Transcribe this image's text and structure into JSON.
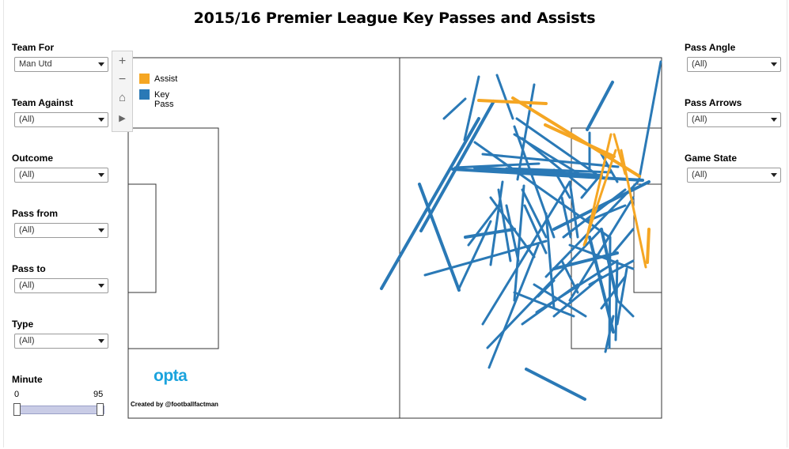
{
  "title": "2015/16 Premier League Key Passes and Assists",
  "left_filters": [
    {
      "label": "Team For",
      "value": "Man Utd"
    },
    {
      "label": "Team Against",
      "value": "(All)"
    },
    {
      "label": "Outcome",
      "value": "(All)"
    },
    {
      "label": "Pass from",
      "value": "(All)"
    },
    {
      "label": "Pass to",
      "value": "(All)"
    },
    {
      "label": "Type",
      "value": "(All)"
    }
  ],
  "right_filters": [
    {
      "label": "Pass Angle",
      "value": "(All)"
    },
    {
      "label": "Pass Arrows",
      "value": "(All)"
    },
    {
      "label": "Game State",
      "value": "(All)"
    }
  ],
  "minute": {
    "label": "Minute",
    "min": "0",
    "max": "95"
  },
  "toolbar": {
    "zoom_in": "+",
    "zoom_out": "−",
    "home": "⌂",
    "play": "▶"
  },
  "legend": [
    {
      "label": "Assist",
      "color": "#f5a623"
    },
    {
      "label": "Key Pass",
      "color": "#2a79b6"
    }
  ],
  "logo": "opta",
  "credit": "Created by @footballfactman"
}
